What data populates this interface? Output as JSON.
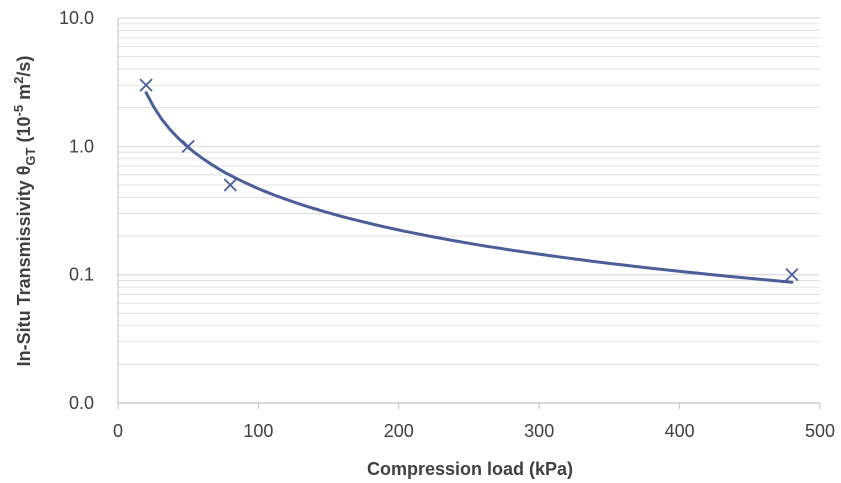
{
  "chart_data": {
    "type": "scatter",
    "xlabel": "Compression load (kPa)",
    "ylabel": {
      "prefix": "In-Situ Transmissivity θ",
      "subscript": "GT",
      "units_open": " (10",
      "exponent": "-5",
      "units_mid": " m",
      "units_power": "2",
      "units_close": "/s)"
    },
    "xlim": [
      0,
      500
    ],
    "ylim": [
      0.01,
      10
    ],
    "y_scale": "log",
    "x_ticks": [
      0,
      100,
      200,
      300,
      400,
      500
    ],
    "y_ticks": [
      {
        "value": 0.01,
        "label": "0.0"
      },
      {
        "value": 0.1,
        "label": "0.1"
      },
      {
        "value": 1,
        "label": "1.0"
      },
      {
        "value": 10,
        "label": "10.0"
      }
    ],
    "minor_gridlines": true,
    "grid": true,
    "series": [
      {
        "kind": "markers",
        "marker": "x",
        "x": [
          20,
          50,
          80,
          480
        ],
        "y": [
          3.0,
          1.0,
          0.5,
          0.1
        ]
      },
      {
        "kind": "trendline",
        "model": "power",
        "x_range": [
          20,
          480
        ],
        "coefficient": 64.6,
        "exponent": -1.07
      }
    ],
    "colors": {
      "series": "#4a5f9a",
      "grid": "#d9d9d9",
      "axis": "#bfbfbf",
      "text": "#404040"
    }
  }
}
